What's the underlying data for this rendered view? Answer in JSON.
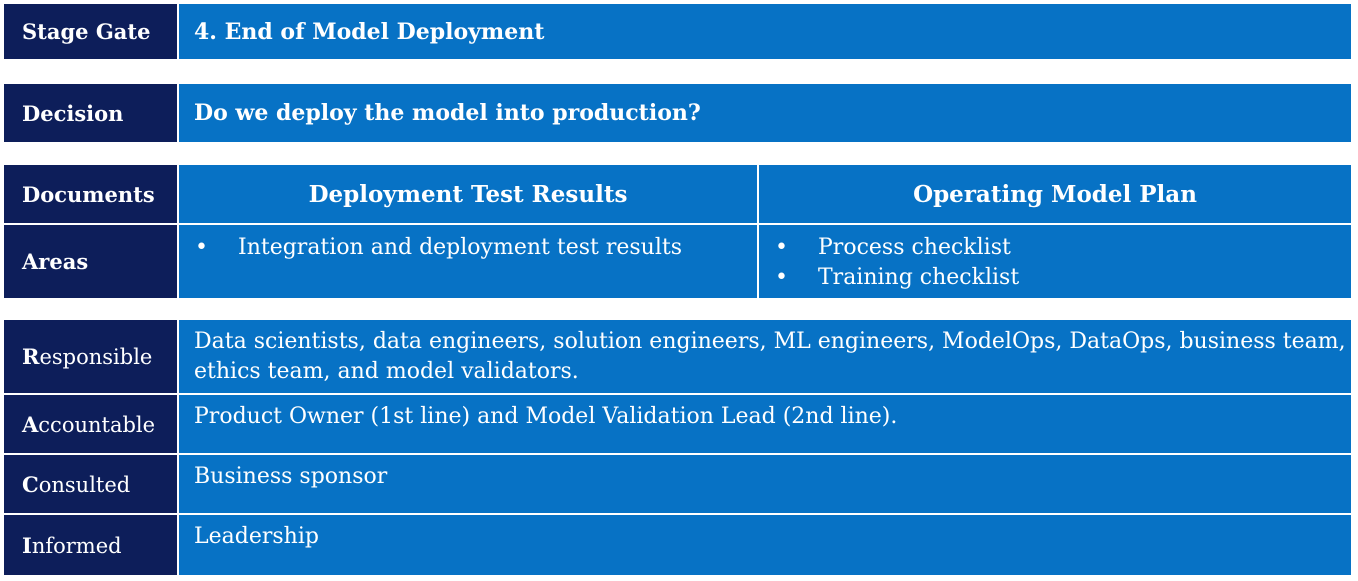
{
  "stage_gate": {
    "label": "Stage Gate",
    "value": "4. End of Model Deployment"
  },
  "decision": {
    "label": "Decision",
    "value": "Do we deploy the model into production?"
  },
  "documents": {
    "label": "Documents",
    "columns": [
      "Deployment Test Results",
      "Operating Model Plan"
    ]
  },
  "areas": {
    "label": "Areas",
    "column1": [
      "Integration and deployment test results"
    ],
    "column2": [
      "Process checklist",
      "Training checklist"
    ]
  },
  "raci": [
    {
      "initial": "R",
      "rest": "esponsible",
      "value": "Data scientists, data engineers, solution engineers, ML engineers, ModelOps, DataOps, business team, ethics team, and model validators."
    },
    {
      "initial": "A",
      "rest": "ccountable",
      "value": "Product Owner (1st line) and Model Validation Lead (2nd line)."
    },
    {
      "initial": "C",
      "rest": "onsulted",
      "value": "Business sponsor"
    },
    {
      "initial": "I",
      "rest": "nformed",
      "value": "Leadership"
    }
  ]
}
